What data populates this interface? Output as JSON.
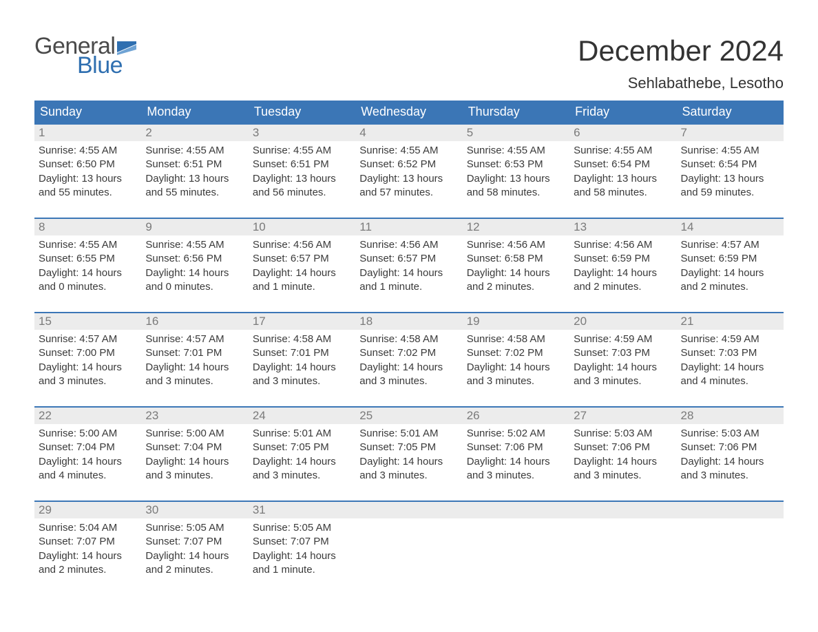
{
  "colors": {
    "header_bg": "#3b76b6",
    "header_text": "#ffffff",
    "daynum_bg": "#ececec",
    "daynum_text": "#7a7a7a",
    "body_text": "#3a3a3a",
    "week_border": "#3b76b6",
    "logo_gray": "#4a4a4a",
    "logo_blue": "#2f6fb0",
    "page_bg": "#ffffff"
  },
  "typography": {
    "title_fontsize": 42,
    "location_fontsize": 22,
    "dow_fontsize": 18,
    "body_fontsize": 15,
    "logo_fontsize": 34
  },
  "logo": {
    "text1": "General",
    "text2": "Blue"
  },
  "title": "December 2024",
  "location": "Sehlabathebe, Lesotho",
  "dow": [
    "Sunday",
    "Monday",
    "Tuesday",
    "Wednesday",
    "Thursday",
    "Friday",
    "Saturday"
  ],
  "weeks": [
    [
      {
        "n": "1",
        "sr": "Sunrise: 4:55 AM",
        "ss": "Sunset: 6:50 PM",
        "d1": "Daylight: 13 hours",
        "d2": "and 55 minutes."
      },
      {
        "n": "2",
        "sr": "Sunrise: 4:55 AM",
        "ss": "Sunset: 6:51 PM",
        "d1": "Daylight: 13 hours",
        "d2": "and 55 minutes."
      },
      {
        "n": "3",
        "sr": "Sunrise: 4:55 AM",
        "ss": "Sunset: 6:51 PM",
        "d1": "Daylight: 13 hours",
        "d2": "and 56 minutes."
      },
      {
        "n": "4",
        "sr": "Sunrise: 4:55 AM",
        "ss": "Sunset: 6:52 PM",
        "d1": "Daylight: 13 hours",
        "d2": "and 57 minutes."
      },
      {
        "n": "5",
        "sr": "Sunrise: 4:55 AM",
        "ss": "Sunset: 6:53 PM",
        "d1": "Daylight: 13 hours",
        "d2": "and 58 minutes."
      },
      {
        "n": "6",
        "sr": "Sunrise: 4:55 AM",
        "ss": "Sunset: 6:54 PM",
        "d1": "Daylight: 13 hours",
        "d2": "and 58 minutes."
      },
      {
        "n": "7",
        "sr": "Sunrise: 4:55 AM",
        "ss": "Sunset: 6:54 PM",
        "d1": "Daylight: 13 hours",
        "d2": "and 59 minutes."
      }
    ],
    [
      {
        "n": "8",
        "sr": "Sunrise: 4:55 AM",
        "ss": "Sunset: 6:55 PM",
        "d1": "Daylight: 14 hours",
        "d2": "and 0 minutes."
      },
      {
        "n": "9",
        "sr": "Sunrise: 4:55 AM",
        "ss": "Sunset: 6:56 PM",
        "d1": "Daylight: 14 hours",
        "d2": "and 0 minutes."
      },
      {
        "n": "10",
        "sr": "Sunrise: 4:56 AM",
        "ss": "Sunset: 6:57 PM",
        "d1": "Daylight: 14 hours",
        "d2": "and 1 minute."
      },
      {
        "n": "11",
        "sr": "Sunrise: 4:56 AM",
        "ss": "Sunset: 6:57 PM",
        "d1": "Daylight: 14 hours",
        "d2": "and 1 minute."
      },
      {
        "n": "12",
        "sr": "Sunrise: 4:56 AM",
        "ss": "Sunset: 6:58 PM",
        "d1": "Daylight: 14 hours",
        "d2": "and 2 minutes."
      },
      {
        "n": "13",
        "sr": "Sunrise: 4:56 AM",
        "ss": "Sunset: 6:59 PM",
        "d1": "Daylight: 14 hours",
        "d2": "and 2 minutes."
      },
      {
        "n": "14",
        "sr": "Sunrise: 4:57 AM",
        "ss": "Sunset: 6:59 PM",
        "d1": "Daylight: 14 hours",
        "d2": "and 2 minutes."
      }
    ],
    [
      {
        "n": "15",
        "sr": "Sunrise: 4:57 AM",
        "ss": "Sunset: 7:00 PM",
        "d1": "Daylight: 14 hours",
        "d2": "and 3 minutes."
      },
      {
        "n": "16",
        "sr": "Sunrise: 4:57 AM",
        "ss": "Sunset: 7:01 PM",
        "d1": "Daylight: 14 hours",
        "d2": "and 3 minutes."
      },
      {
        "n": "17",
        "sr": "Sunrise: 4:58 AM",
        "ss": "Sunset: 7:01 PM",
        "d1": "Daylight: 14 hours",
        "d2": "and 3 minutes."
      },
      {
        "n": "18",
        "sr": "Sunrise: 4:58 AM",
        "ss": "Sunset: 7:02 PM",
        "d1": "Daylight: 14 hours",
        "d2": "and 3 minutes."
      },
      {
        "n": "19",
        "sr": "Sunrise: 4:58 AM",
        "ss": "Sunset: 7:02 PM",
        "d1": "Daylight: 14 hours",
        "d2": "and 3 minutes."
      },
      {
        "n": "20",
        "sr": "Sunrise: 4:59 AM",
        "ss": "Sunset: 7:03 PM",
        "d1": "Daylight: 14 hours",
        "d2": "and 3 minutes."
      },
      {
        "n": "21",
        "sr": "Sunrise: 4:59 AM",
        "ss": "Sunset: 7:03 PM",
        "d1": "Daylight: 14 hours",
        "d2": "and 4 minutes."
      }
    ],
    [
      {
        "n": "22",
        "sr": "Sunrise: 5:00 AM",
        "ss": "Sunset: 7:04 PM",
        "d1": "Daylight: 14 hours",
        "d2": "and 4 minutes."
      },
      {
        "n": "23",
        "sr": "Sunrise: 5:00 AM",
        "ss": "Sunset: 7:04 PM",
        "d1": "Daylight: 14 hours",
        "d2": "and 3 minutes."
      },
      {
        "n": "24",
        "sr": "Sunrise: 5:01 AM",
        "ss": "Sunset: 7:05 PM",
        "d1": "Daylight: 14 hours",
        "d2": "and 3 minutes."
      },
      {
        "n": "25",
        "sr": "Sunrise: 5:01 AM",
        "ss": "Sunset: 7:05 PM",
        "d1": "Daylight: 14 hours",
        "d2": "and 3 minutes."
      },
      {
        "n": "26",
        "sr": "Sunrise: 5:02 AM",
        "ss": "Sunset: 7:06 PM",
        "d1": "Daylight: 14 hours",
        "d2": "and 3 minutes."
      },
      {
        "n": "27",
        "sr": "Sunrise: 5:03 AM",
        "ss": "Sunset: 7:06 PM",
        "d1": "Daylight: 14 hours",
        "d2": "and 3 minutes."
      },
      {
        "n": "28",
        "sr": "Sunrise: 5:03 AM",
        "ss": "Sunset: 7:06 PM",
        "d1": "Daylight: 14 hours",
        "d2": "and 3 minutes."
      }
    ],
    [
      {
        "n": "29",
        "sr": "Sunrise: 5:04 AM",
        "ss": "Sunset: 7:07 PM",
        "d1": "Daylight: 14 hours",
        "d2": "and 2 minutes."
      },
      {
        "n": "30",
        "sr": "Sunrise: 5:05 AM",
        "ss": "Sunset: 7:07 PM",
        "d1": "Daylight: 14 hours",
        "d2": "and 2 minutes."
      },
      {
        "n": "31",
        "sr": "Sunrise: 5:05 AM",
        "ss": "Sunset: 7:07 PM",
        "d1": "Daylight: 14 hours",
        "d2": "and 1 minute."
      },
      {
        "empty": true
      },
      {
        "empty": true
      },
      {
        "empty": true
      },
      {
        "empty": true
      }
    ]
  ]
}
